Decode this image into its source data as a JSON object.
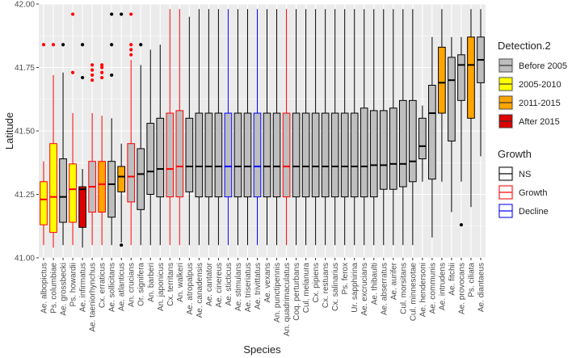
{
  "chart_data": {
    "type": "boxplot",
    "xlabel": "Species",
    "ylabel": "Latitude",
    "ylim": [
      41.0,
      42.0
    ],
    "yticks": [
      "41.00",
      "41.25",
      "41.50",
      "41.75",
      "42.00"
    ],
    "ytick_values": [
      41.0,
      41.25,
      41.5,
      41.75,
      42.0
    ],
    "panel_background": "#ebebeb",
    "grid": true,
    "fill_legend": {
      "title": "Detection.2",
      "entries": [
        {
          "key": "before",
          "label": "Before 2005",
          "color": "#bebebe"
        },
        {
          "key": "d0510",
          "label": "2005-2010",
          "color": "#ffff00"
        },
        {
          "key": "d1115",
          "label": "2011-2015",
          "color": "#ffa500"
        },
        {
          "key": "after",
          "label": "After 2015",
          "color": "#dd0000"
        }
      ]
    },
    "outline_legend": {
      "title": "Growth",
      "entries": [
        {
          "key": "NS",
          "label": "NS",
          "color": "#000000"
        },
        {
          "key": "Growth",
          "label": "Growth",
          "color": "#ff0000"
        },
        {
          "key": "Decline",
          "label": "Decline",
          "color": "#0000ff"
        }
      ]
    },
    "series": [
      {
        "species": "Ae. albopictus",
        "fill": "d0510",
        "growth": "Growth",
        "min": 41.05,
        "q1": 41.13,
        "median": 41.23,
        "q3": 41.3,
        "max": 41.38,
        "outliers": [
          41.84
        ]
      },
      {
        "species": "Ps. columbiae",
        "fill": "d0510",
        "growth": "Growth",
        "min": 41.04,
        "q1": 41.1,
        "median": 41.24,
        "q3": 41.45,
        "max": 41.72,
        "outliers": [
          41.84
        ]
      },
      {
        "species": "Ae. grossbecki",
        "fill": "before",
        "growth": "NS",
        "min": 41.05,
        "q1": 41.14,
        "median": 41.24,
        "q3": 41.39,
        "max": 41.73,
        "outliers": [
          41.84
        ]
      },
      {
        "species": "Ps. howardii",
        "fill": "d0510",
        "growth": "Growth",
        "min": 41.05,
        "q1": 41.14,
        "median": 41.27,
        "q3": 41.37,
        "max": 41.57,
        "outliers": [
          41.96,
          41.73
        ]
      },
      {
        "species": "Ae. infirmatus",
        "fill": "after",
        "growth": "NS",
        "min": 41.04,
        "q1": 41.12,
        "median": 41.27,
        "q3": 41.28,
        "max": 41.35,
        "outliers": [
          41.71,
          41.84
        ]
      },
      {
        "species": "Ae. taeniorhynchus",
        "fill": "before",
        "growth": "Growth",
        "min": 41.05,
        "q1": 41.18,
        "median": 41.28,
        "q3": 41.38,
        "max": 41.57,
        "outliers": [
          41.76,
          41.74,
          41.72,
          41.7
        ]
      },
      {
        "species": "Cx. erraticus",
        "fill": "d1115",
        "growth": "Growth",
        "min": 41.05,
        "q1": 41.18,
        "median": 41.29,
        "q3": 41.38,
        "max": 41.56,
        "outliers": [
          41.76,
          41.75,
          41.73,
          41.71
        ]
      },
      {
        "species": "Ae. sollicitans",
        "fill": "before",
        "growth": "NS",
        "min": 41.05,
        "q1": 41.16,
        "median": 41.29,
        "q3": 41.38,
        "max": 41.55,
        "outliers": [
          41.96,
          41.84,
          41.72
        ]
      },
      {
        "species": "Ae. atlanticus",
        "fill": "d1115",
        "growth": "NS",
        "min": 41.06,
        "q1": 41.26,
        "median": 41.32,
        "q3": 41.36,
        "max": 41.45,
        "outliers": [
          41.96,
          41.05
        ]
      },
      {
        "species": "An. crucians",
        "fill": "before",
        "growth": "Growth",
        "min": 41.05,
        "q1": 41.22,
        "median": 41.32,
        "q3": 41.45,
        "max": 41.78,
        "outliers": [
          41.96,
          41.84,
          41.82,
          41.8
        ]
      },
      {
        "species": "Or. signifera",
        "fill": "before",
        "growth": "NS",
        "min": 41.05,
        "q1": 41.19,
        "median": 41.33,
        "q3": 41.43,
        "max": 41.76,
        "outliers": [
          41.84
        ]
      },
      {
        "species": "An. barberi",
        "fill": "before",
        "growth": "NS",
        "min": 41.05,
        "q1": 41.25,
        "median": 41.34,
        "q3": 41.53,
        "max": 41.82,
        "outliers": []
      },
      {
        "species": "An. japonicus",
        "fill": "before",
        "growth": "NS",
        "min": 41.05,
        "q1": 41.24,
        "median": 41.35,
        "q3": 41.55,
        "max": 41.84,
        "outliers": []
      },
      {
        "species": "Cx. territans",
        "fill": "before",
        "growth": "Growth",
        "min": 41.05,
        "q1": 41.24,
        "median": 41.35,
        "q3": 41.57,
        "max": 41.98,
        "outliers": []
      },
      {
        "species": "An. walkeri",
        "fill": "before",
        "growth": "Growth",
        "min": 41.05,
        "q1": 41.24,
        "median": 41.36,
        "q3": 41.58,
        "max": 41.98,
        "outliers": []
      },
      {
        "species": "Ae. atropalpus",
        "fill": "before",
        "growth": "NS",
        "min": 41.05,
        "q1": 41.26,
        "median": 41.36,
        "q3": 41.55,
        "max": 41.95,
        "outliers": []
      },
      {
        "species": "Ae. canadensis",
        "fill": "before",
        "growth": "NS",
        "min": 41.05,
        "q1": 41.24,
        "median": 41.36,
        "q3": 41.57,
        "max": 41.98,
        "outliers": []
      },
      {
        "species": "Ae. cantator",
        "fill": "before",
        "growth": "NS",
        "min": 41.05,
        "q1": 41.24,
        "median": 41.36,
        "q3": 41.57,
        "max": 41.98,
        "outliers": []
      },
      {
        "species": "Ae. cinereus",
        "fill": "before",
        "growth": "NS",
        "min": 41.05,
        "q1": 41.24,
        "median": 41.36,
        "q3": 41.57,
        "max": 41.98,
        "outliers": []
      },
      {
        "species": "Ae. sticticus",
        "fill": "before",
        "growth": "Decline",
        "min": 41.05,
        "q1": 41.24,
        "median": 41.36,
        "q3": 41.57,
        "max": 41.98,
        "outliers": []
      },
      {
        "species": "Ae. stimulans",
        "fill": "before",
        "growth": "NS",
        "min": 41.05,
        "q1": 41.24,
        "median": 41.36,
        "q3": 41.57,
        "max": 41.98,
        "outliers": []
      },
      {
        "species": "Ae. triseriatus",
        "fill": "before",
        "growth": "NS",
        "min": 41.05,
        "q1": 41.24,
        "median": 41.36,
        "q3": 41.57,
        "max": 41.98,
        "outliers": []
      },
      {
        "species": "Ae. trivittatus",
        "fill": "before",
        "growth": "Decline",
        "min": 41.05,
        "q1": 41.24,
        "median": 41.36,
        "q3": 41.57,
        "max": 41.98,
        "outliers": []
      },
      {
        "species": "Ae. vexans",
        "fill": "before",
        "growth": "NS",
        "min": 41.05,
        "q1": 41.24,
        "median": 41.36,
        "q3": 41.57,
        "max": 41.98,
        "outliers": []
      },
      {
        "species": "An. punctipennis",
        "fill": "before",
        "growth": "NS",
        "min": 41.05,
        "q1": 41.24,
        "median": 41.36,
        "q3": 41.57,
        "max": 41.98,
        "outliers": []
      },
      {
        "species": "An. quadrimaculatus",
        "fill": "before",
        "growth": "Growth",
        "min": 41.05,
        "q1": 41.24,
        "median": 41.36,
        "q3": 41.57,
        "max": 41.98,
        "outliers": []
      },
      {
        "species": "Coq. perturbans",
        "fill": "before",
        "growth": "NS",
        "min": 41.05,
        "q1": 41.24,
        "median": 41.36,
        "q3": 41.57,
        "max": 41.98,
        "outliers": []
      },
      {
        "species": "Cul. melanura",
        "fill": "before",
        "growth": "NS",
        "min": 41.05,
        "q1": 41.24,
        "median": 41.36,
        "q3": 41.57,
        "max": 41.98,
        "outliers": []
      },
      {
        "species": "Cx. pipiens",
        "fill": "before",
        "growth": "NS",
        "min": 41.05,
        "q1": 41.24,
        "median": 41.36,
        "q3": 41.57,
        "max": 41.98,
        "outliers": []
      },
      {
        "species": "Cx. restuans",
        "fill": "before",
        "growth": "NS",
        "min": 41.05,
        "q1": 41.24,
        "median": 41.36,
        "q3": 41.57,
        "max": 41.98,
        "outliers": []
      },
      {
        "species": "Cx. salinarius",
        "fill": "before",
        "growth": "NS",
        "min": 41.05,
        "q1": 41.24,
        "median": 41.36,
        "q3": 41.57,
        "max": 41.98,
        "outliers": []
      },
      {
        "species": "Ps. ferox",
        "fill": "before",
        "growth": "NS",
        "min": 41.05,
        "q1": 41.24,
        "median": 41.36,
        "q3": 41.57,
        "max": 41.98,
        "outliers": []
      },
      {
        "species": "Ur. sapphirina",
        "fill": "before",
        "growth": "NS",
        "min": 41.05,
        "q1": 41.24,
        "median": 41.36,
        "q3": 41.57,
        "max": 41.98,
        "outliers": []
      },
      {
        "species": "Ae. excrucians",
        "fill": "before",
        "growth": "NS",
        "min": 41.05,
        "q1": 41.24,
        "median": 41.36,
        "q3": 41.59,
        "max": 41.98,
        "outliers": []
      },
      {
        "species": "Ae. thibaulti",
        "fill": "before",
        "growth": "NS",
        "min": 41.05,
        "q1": 41.24,
        "median": 41.365,
        "q3": 41.58,
        "max": 41.98,
        "outliers": []
      },
      {
        "species": "Ae. abserratus",
        "fill": "before",
        "growth": "NS",
        "min": 41.05,
        "q1": 41.27,
        "median": 41.365,
        "q3": 41.58,
        "max": 41.98,
        "outliers": []
      },
      {
        "species": "Ae. aurifer",
        "fill": "before",
        "growth": "NS",
        "min": 41.05,
        "q1": 41.27,
        "median": 41.37,
        "q3": 41.59,
        "max": 41.98,
        "outliers": []
      },
      {
        "species": "Cul. morsitans",
        "fill": "before",
        "growth": "NS",
        "min": 41.05,
        "q1": 41.28,
        "median": 41.37,
        "q3": 41.62,
        "max": 41.98,
        "outliers": []
      },
      {
        "species": "Cul. minnesotae",
        "fill": "before",
        "growth": "NS",
        "min": 41.05,
        "q1": 41.3,
        "median": 41.38,
        "q3": 41.62,
        "max": 41.98,
        "outliers": []
      },
      {
        "species": "Ae. hendersoni",
        "fill": "before",
        "growth": "NS",
        "min": 41.3,
        "q1": 41.39,
        "median": 41.44,
        "q3": 41.55,
        "max": 41.6,
        "outliers": []
      },
      {
        "species": "Ae. communis",
        "fill": "before",
        "growth": "NS",
        "min": 41.08,
        "q1": 41.31,
        "median": 41.57,
        "q3": 41.68,
        "max": 41.87,
        "outliers": []
      },
      {
        "species": "Ae. intrudens",
        "fill": "d1115",
        "growth": "NS",
        "min": 41.3,
        "q1": 41.57,
        "median": 41.69,
        "q3": 41.83,
        "max": 41.98,
        "outliers": []
      },
      {
        "species": "Ae. fitchii",
        "fill": "before",
        "growth": "NS",
        "min": 41.18,
        "q1": 41.46,
        "median": 41.7,
        "q3": 41.79,
        "max": 41.87,
        "outliers": []
      },
      {
        "species": "Ae. provocans",
        "fill": "before",
        "growth": "NS",
        "min": 41.3,
        "q1": 41.62,
        "median": 41.76,
        "q3": 41.8,
        "max": 41.87,
        "outliers": [
          41.13
        ]
      },
      {
        "species": "Ps. ciliata",
        "fill": "d1115",
        "growth": "NS",
        "min": 41.2,
        "q1": 41.55,
        "median": 41.76,
        "q3": 41.87,
        "max": 41.98,
        "outliers": []
      },
      {
        "species": "Ae. diantaeus",
        "fill": "before",
        "growth": "NS",
        "min": 41.4,
        "q1": 41.69,
        "median": 41.78,
        "q3": 41.87,
        "max": 41.98,
        "outliers": []
      }
    ]
  }
}
